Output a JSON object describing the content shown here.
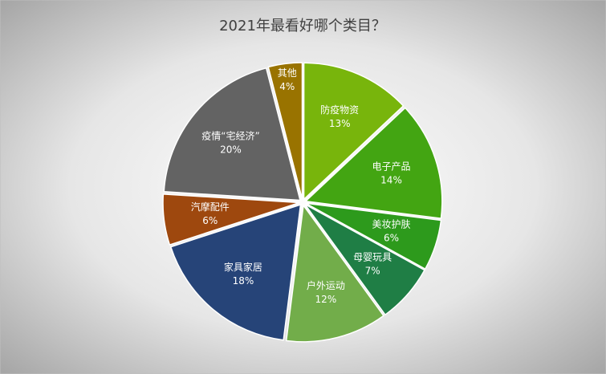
{
  "chart_data": {
    "type": "pie",
    "title": "2021年最看好哪个类目？",
    "categories": [
      "防疫物资",
      "电子产品",
      "美妆护肤",
      "母婴玩具",
      "户外运动",
      "家具家居",
      "汽摩配件",
      "疫情“宅经济”",
      "其他"
    ],
    "values": [
      13,
      14,
      6,
      7,
      12,
      18,
      6,
      20,
      4
    ],
    "value_labels": [
      "13%",
      "14%",
      "6%",
      "7%",
      "12%",
      "18%",
      "6%",
      "20%",
      "4%"
    ],
    "colors": [
      "#78b50c",
      "#43a512",
      "#2d9a1c",
      "#1f7e45",
      "#72ad4a",
      "#264478",
      "#9e480e",
      "#636363",
      "#997300"
    ]
  }
}
